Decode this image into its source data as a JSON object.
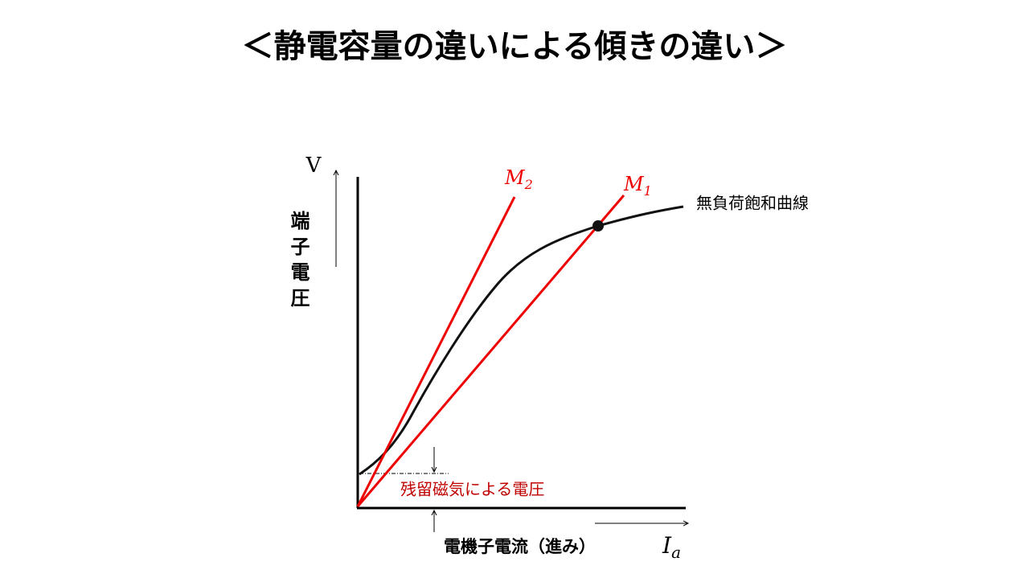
{
  "title": "＜静電容量の違いによる傾きの違い＞",
  "y_axis": {
    "symbol": "V",
    "label": "端子電圧"
  },
  "x_axis": {
    "label": "電機子電流（進み）",
    "symbol": "I",
    "symbol_sub": "a"
  },
  "lines": [
    {
      "symbol": "M",
      "sub": "2"
    },
    {
      "symbol": "M",
      "sub": "1"
    }
  ],
  "curve_label": "無負荷飽和曲線",
  "residual_label": "残留磁気による電圧"
}
